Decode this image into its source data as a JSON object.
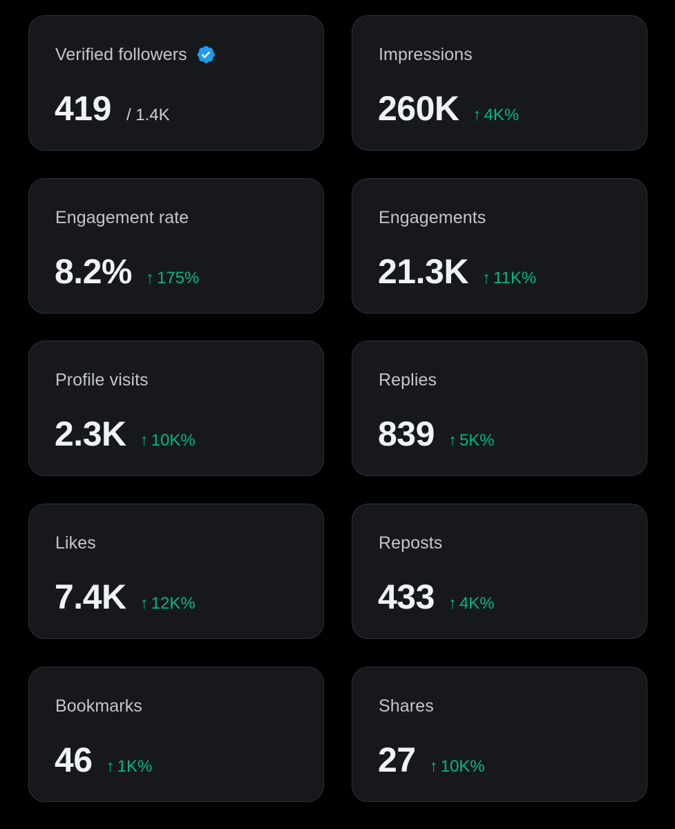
{
  "colors": {
    "background": "#000000",
    "card": "#16181c",
    "border": "#2f3336",
    "positive": "#00ba7c",
    "verified": "#1d9bf0"
  },
  "cards": [
    {
      "label": "Verified followers",
      "value": "419",
      "sub": "/ 1.4K",
      "icon": "verified-badge-icon"
    },
    {
      "label": "Impressions",
      "value": "260K",
      "arrow": "↑",
      "change": "4K%"
    },
    {
      "label": "Engagement rate",
      "value": "8.2%",
      "arrow": "↑",
      "change": "175%"
    },
    {
      "label": "Engagements",
      "value": "21.3K",
      "arrow": "↑",
      "change": "11K%"
    },
    {
      "label": "Profile visits",
      "value": "2.3K",
      "arrow": "↑",
      "change": "10K%"
    },
    {
      "label": "Replies",
      "value": "839",
      "arrow": "↑",
      "change": "5K%"
    },
    {
      "label": "Likes",
      "value": "7.4K",
      "arrow": "↑",
      "change": "12K%"
    },
    {
      "label": "Reposts",
      "value": "433",
      "arrow": "↑",
      "change": "4K%"
    },
    {
      "label": "Bookmarks",
      "value": "46",
      "arrow": "↑",
      "change": "1K%"
    },
    {
      "label": "Shares",
      "value": "27",
      "arrow": "↑",
      "change": "10K%"
    }
  ]
}
